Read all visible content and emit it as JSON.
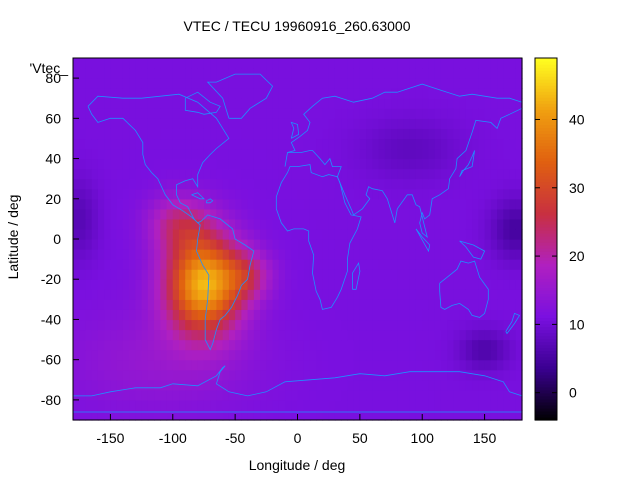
{
  "chart_data": {
    "type": "heatmap",
    "title": "VTEC / TECU 19960916_260.63000",
    "xlabel": "Longitude / deg",
    "ylabel": "Latitude / deg",
    "xlim": [
      -180,
      180
    ],
    "ylim": [
      -90,
      90
    ],
    "xticks": [
      -150,
      -100,
      -50,
      0,
      50,
      100,
      150
    ],
    "yticks": [
      -80,
      -60,
      -40,
      -20,
      0,
      20,
      40,
      60,
      80
    ],
    "series_label": "'Vtec_",
    "grid": false,
    "colorbar": {
      "min": -4,
      "max": 49,
      "ticks": [
        0,
        10,
        20,
        30,
        40
      ],
      "colors": [
        "#000000",
        "#3a0090",
        "#7a10e0",
        "#b020c0",
        "#c83040",
        "#e06010",
        "#f0a010",
        "#ffff20"
      ]
    },
    "peak": {
      "longitude": -75,
      "latitude": -25,
      "value": 48
    },
    "background_value": 11,
    "overlay": "world coastlines",
    "overlay_color": "#1e90ff"
  }
}
